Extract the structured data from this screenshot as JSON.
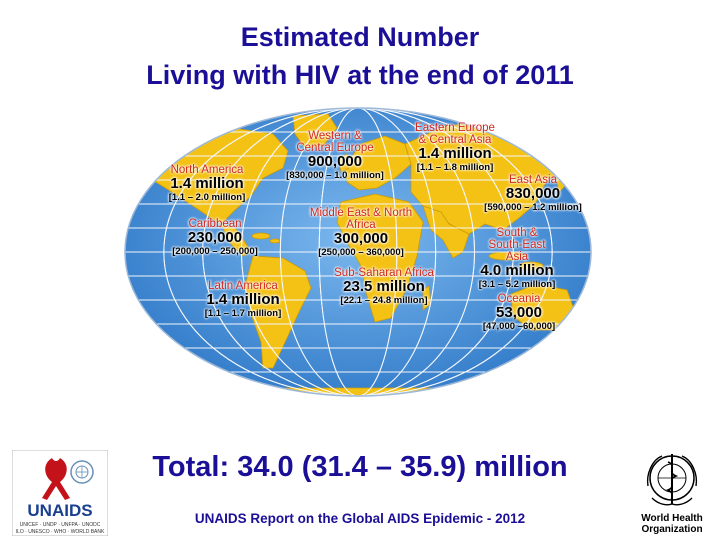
{
  "title": {
    "line1": "Estimated  Number",
    "line2": "Living with HIV at the end of 2011"
  },
  "regions": [
    {
      "id": "western-central-europe",
      "name": "Western &\nCentral Europe",
      "value": "900,000",
      "range": "[830,000 – 1.0 million]"
    },
    {
      "id": "eastern-europe-central-asia",
      "name": "Eastern Europe\n& Central Asia",
      "value": "1.4 million",
      "range": "[1.1 – 1.8 million]"
    },
    {
      "id": "north-america",
      "name": "North America",
      "value": "1.4 million",
      "range": "[1.1 – 2.0 million]"
    },
    {
      "id": "east-asia",
      "name": "East Asia",
      "value": "830,000",
      "range": "[590,000 – 1.2 million]"
    },
    {
      "id": "caribbean",
      "name": "Caribbean",
      "value": "230,000",
      "range": "[200,000 – 250,000]"
    },
    {
      "id": "middle-east-north-africa",
      "name": "Middle East & North\nAfrica",
      "value": "300,000",
      "range": "[250,000 – 360,000]"
    },
    {
      "id": "south-southeast-asia",
      "name": "South & South-East\nAsia",
      "value": "4.0 million",
      "range": "[3.1 – 5.2 million]"
    },
    {
      "id": "sub-saharan-africa",
      "name": "Sub-Saharan Africa",
      "value": "23.5 million",
      "range": "[22.1 – 24.8 million]"
    },
    {
      "id": "latin-america",
      "name": "Latin America",
      "value": "1.4 million",
      "range": "[1.1 – 1.7 million]"
    },
    {
      "id": "oceania",
      "name": "Oceania",
      "value": "53,000",
      "range": "[47,000 –60,000]"
    }
  ],
  "total": "Total: 34.0 (31.4 – 35.9) million",
  "source": "UNAIDS Report on the Global AIDS Epidemic - 2012",
  "logos": {
    "unaids": "UNAIDS",
    "unaids_sub1": "UNICEF · UNDP · UNFPA · UNODC",
    "unaids_sub2": "ILO · UNESCO · WHO · WORLD BANK",
    "who_line1": "World Health",
    "who_line2": "Organization"
  },
  "colors": {
    "title": "#1a0f96",
    "region_name": "#d2281e",
    "ocean": "#3e8ad6",
    "land": "#f4c214"
  }
}
